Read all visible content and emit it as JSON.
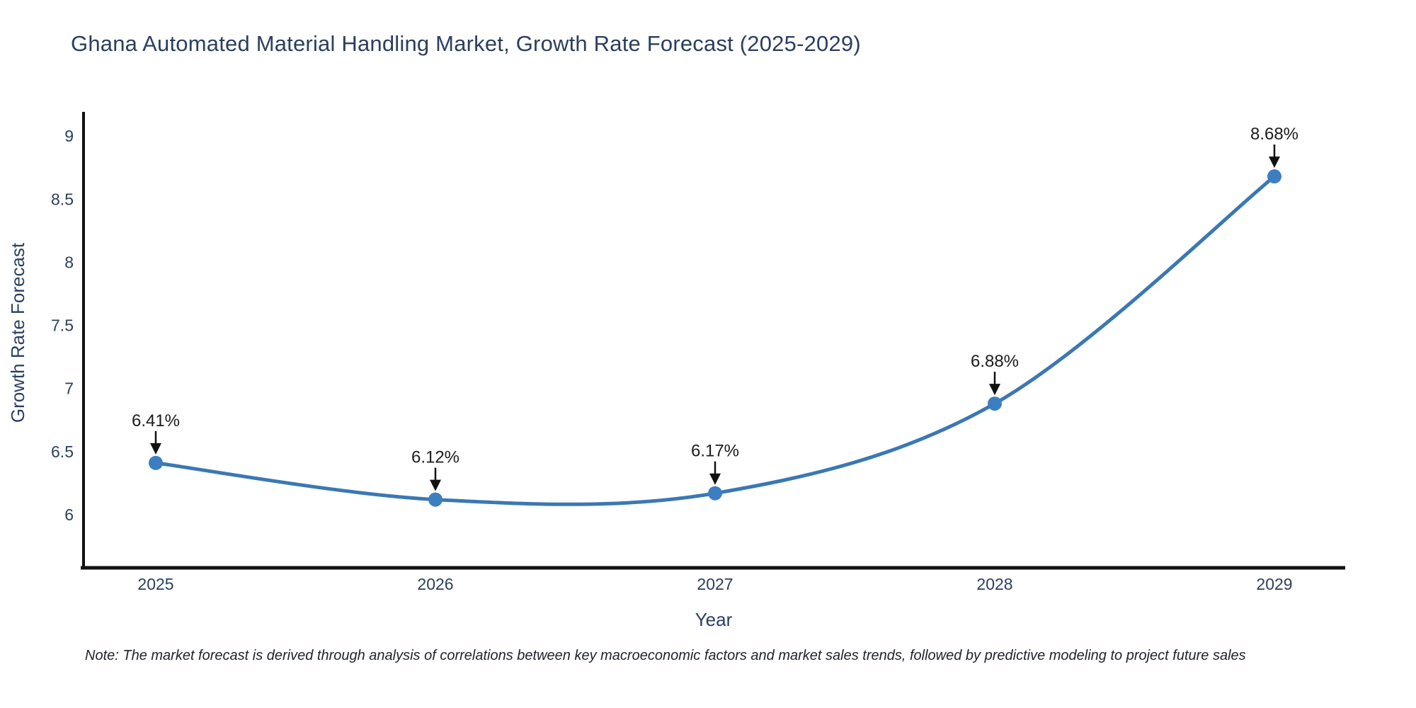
{
  "chart_data": {
    "type": "line",
    "title": "Ghana Automated Material Handling Market, Growth Rate Forecast (2025-2029)",
    "xlabel": "Year",
    "ylabel": "Growth Rate Forecast",
    "categories": [
      2025,
      2026,
      2027,
      2028,
      2029
    ],
    "values": [
      6.41,
      6.12,
      6.17,
      6.88,
      8.68
    ],
    "point_labels": [
      "6.41%",
      "6.12%",
      "6.17%",
      "6.88%",
      "8.68%"
    ],
    "y_ticks": [
      6,
      6.5,
      7,
      7.5,
      8,
      8.5,
      9
    ],
    "ylim": [
      5.58,
      9.19
    ],
    "line_shape": "spline",
    "grid": false,
    "legend": "none",
    "colors": {
      "line": "#3a78b3",
      "marker": "#3b7fc0",
      "axis": "#111111",
      "arrow": "#111111",
      "tick_text": "#2a3f5f",
      "annotation_text": "#1c1c1c",
      "title_text": "#2a3f5f"
    },
    "note": "Note: The market forecast is derived through analysis of correlations between key macroeconomic factors and market sales trends, followed by predictive modeling to project future sales"
  }
}
